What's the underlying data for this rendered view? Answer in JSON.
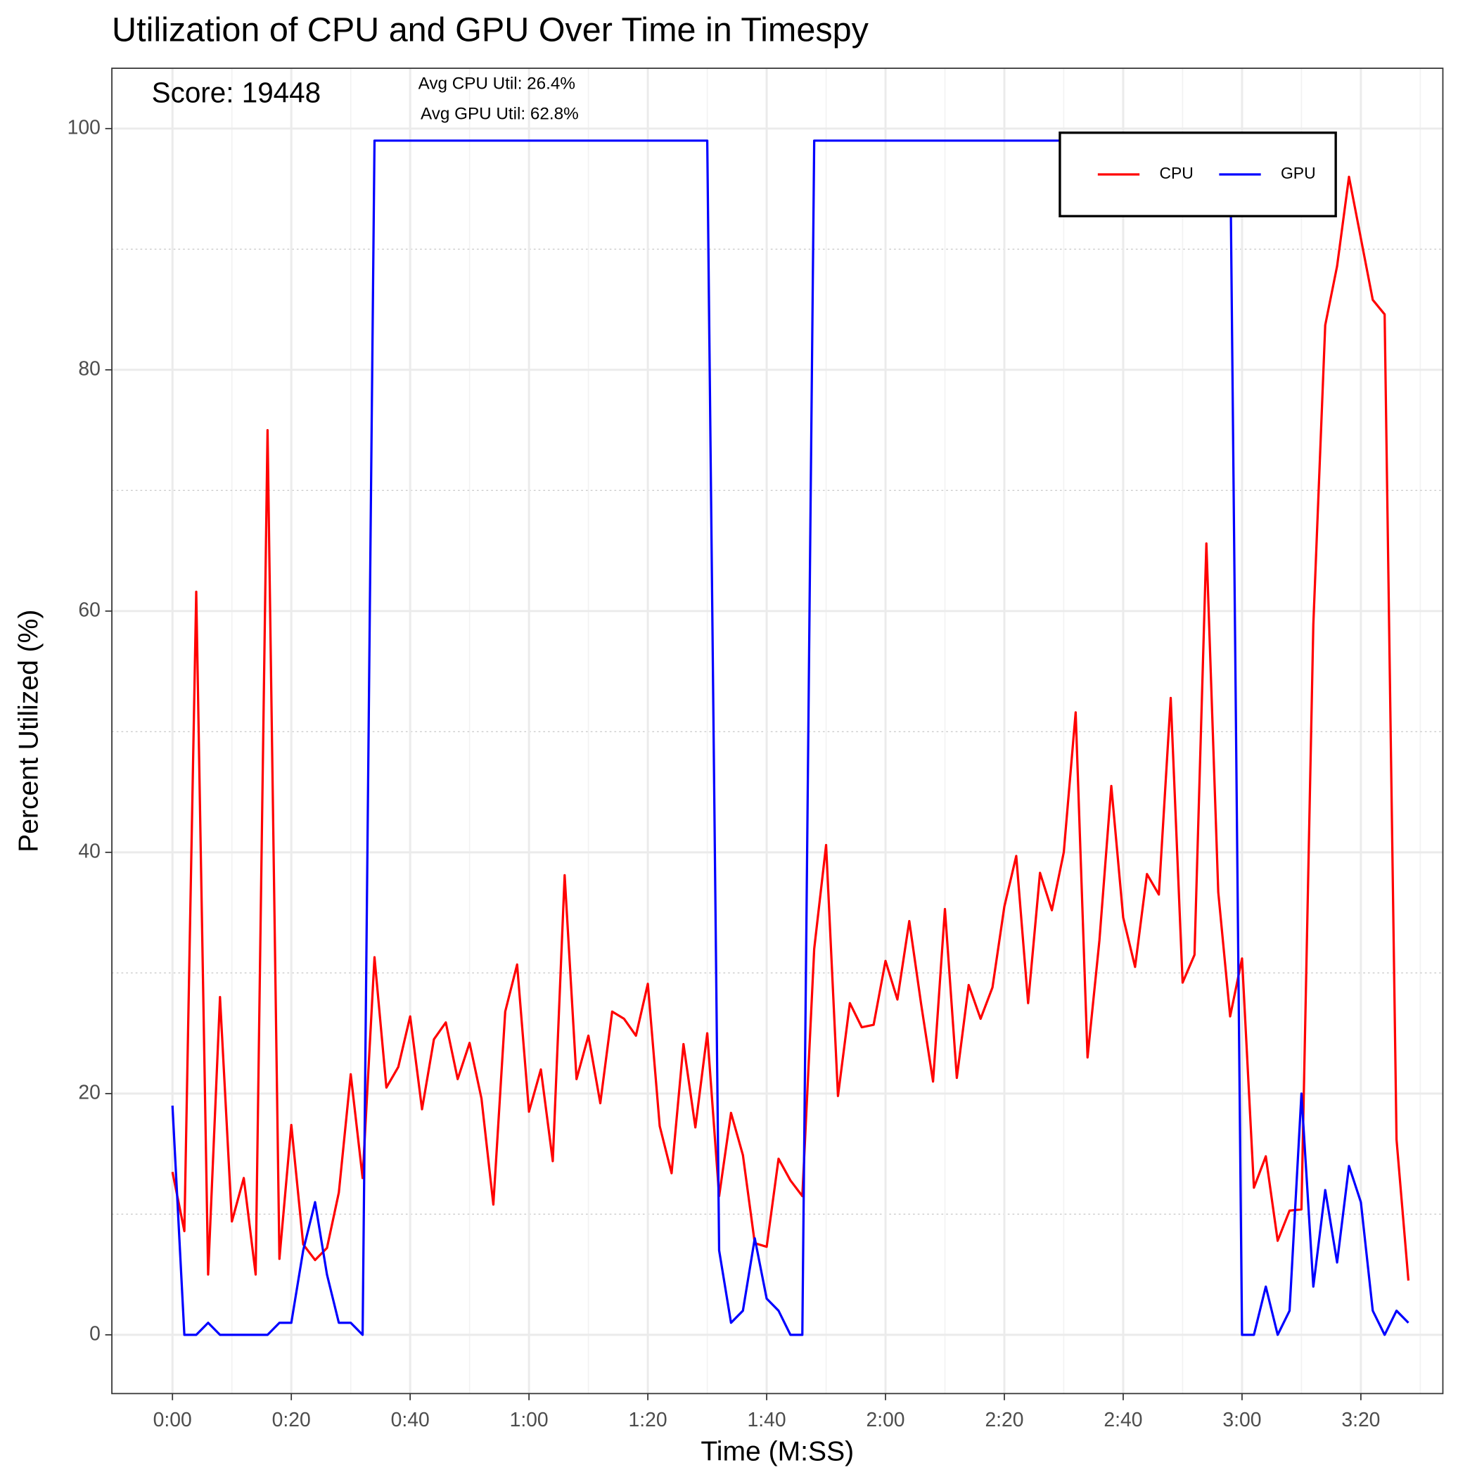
{
  "chart_data": {
    "type": "line",
    "title": "Utilization of CPU and GPU Over Time in Timespy",
    "x_label": "Time (M:SS)",
    "y_label": "Percent Utilized (%)",
    "annotations": [
      "Score: 19448",
      "Avg CPU Util: 26.4%",
      "Avg GPU Util: 62.8%"
    ],
    "x": [
      0,
      2,
      4,
      6,
      8,
      10,
      12,
      14,
      16,
      18,
      20,
      22,
      24,
      26,
      28,
      30,
      32,
      34,
      36,
      38,
      40,
      42,
      44,
      46,
      48,
      50,
      52,
      54,
      56,
      58,
      60,
      62,
      64,
      66,
      68,
      70,
      72,
      74,
      76,
      78,
      80,
      82,
      84,
      86,
      88,
      90,
      92,
      94,
      96,
      98,
      100,
      102,
      104,
      106,
      108,
      110,
      112,
      114,
      116,
      118,
      120,
      122,
      124,
      126,
      128,
      130,
      132,
      134,
      136,
      138,
      140,
      142,
      144,
      146,
      148,
      150,
      152,
      154,
      156,
      158,
      160,
      162,
      164,
      166,
      168,
      170,
      172,
      174,
      176,
      178,
      180,
      182,
      184,
      186,
      188,
      190,
      192,
      194,
      196,
      198,
      200,
      202,
      204,
      206,
      208
    ],
    "series": [
      {
        "name": "CPU",
        "color": "#ff0000",
        "values": [
          13.5,
          8.6,
          61.6,
          5,
          28,
          9.4,
          13,
          5,
          75,
          6.3,
          17.4,
          7.5,
          6.2,
          7.2,
          11.8,
          21.6,
          13,
          31.3,
          20.5,
          22.2,
          26.4,
          18.7,
          24.5,
          25.9,
          21.2,
          24.2,
          19.6,
          10.8,
          26.8,
          30.7,
          18.5,
          22,
          14.4,
          38.1,
          21.2,
          24.8,
          19.2,
          26.8,
          26.2,
          24.8,
          29.1,
          17.3,
          13.4,
          24.1,
          17.2,
          25,
          11.5,
          18.4,
          14.9,
          7.6,
          7.3,
          14.6,
          12.8,
          11.5,
          32,
          40.6,
          19.8,
          27.5,
          25.5,
          25.7,
          31,
          27.8,
          34.3,
          27.4,
          21,
          35.3,
          21.3,
          29,
          26.2,
          28.8,
          35.5,
          39.7,
          27.5,
          38.3,
          35.2,
          40,
          51.6,
          23,
          32.7,
          45.5,
          34.6,
          30.5,
          38.2,
          36.5,
          52.8,
          29.2,
          31.5,
          65.6,
          36.7,
          26.4,
          31.2,
          12.2,
          14.8,
          7.8,
          10.3,
          10.4,
          58.9,
          83.7,
          88.6,
          96,
          90.9,
          85.8,
          84.6,
          16.2,
          4.5
        ]
      },
      {
        "name": "GPU",
        "color": "#0000ff",
        "values": [
          19,
          0,
          0,
          1,
          0,
          0,
          0,
          0,
          0,
          1,
          1,
          7,
          11,
          5,
          1,
          1,
          0,
          99,
          99,
          99,
          99,
          99,
          99,
          99,
          99,
          99,
          99,
          99,
          99,
          99,
          99,
          99,
          99,
          99,
          99,
          99,
          99,
          99,
          99,
          99,
          99,
          99,
          99,
          99,
          99,
          99,
          7,
          1,
          2,
          8,
          3,
          2,
          0,
          0,
          99,
          99,
          99,
          99,
          99,
          99,
          99,
          99,
          99,
          99,
          99,
          99,
          99,
          99,
          99,
          99,
          99,
          99,
          99,
          99,
          99,
          99,
          99,
          99,
          99,
          99,
          99,
          99,
          99,
          99,
          99,
          99,
          99,
          99,
          99,
          99,
          0,
          0,
          4,
          0,
          2,
          20,
          4,
          12,
          6,
          14,
          11,
          2,
          0,
          2,
          1
        ]
      }
    ],
    "xlim": [
      -10.2,
      213.8
    ],
    "ylim": [
      -4.87,
      105
    ],
    "xticks": [
      {
        "value": 0,
        "label": "0:00"
      },
      {
        "value": 20,
        "label": "0:20"
      },
      {
        "value": 40,
        "label": "0:40"
      },
      {
        "value": 60,
        "label": "1:00"
      },
      {
        "value": 80,
        "label": "1:20"
      },
      {
        "value": 100,
        "label": "1:40"
      },
      {
        "value": 120,
        "label": "2:00"
      },
      {
        "value": 140,
        "label": "2:20"
      },
      {
        "value": 160,
        "label": "2:40"
      },
      {
        "value": 180,
        "label": "3:00"
      },
      {
        "value": 200,
        "label": "3:20"
      }
    ],
    "yticks": [
      0,
      20,
      40,
      60,
      80,
      100
    ],
    "xminorticks": [
      10,
      30,
      50,
      70,
      90,
      110,
      130,
      150,
      170,
      190,
      210
    ],
    "yminorticks": [
      10,
      30,
      50,
      70,
      90
    ],
    "grid": true,
    "legend_position": "top-right"
  }
}
